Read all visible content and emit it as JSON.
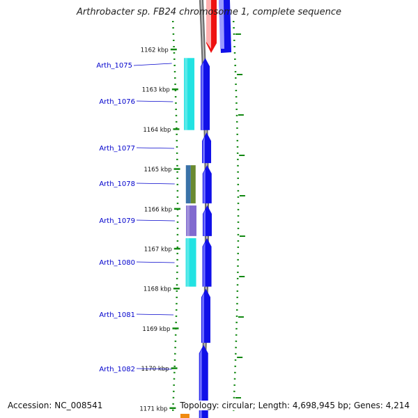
{
  "title": "Arthrobacter sp. FB24 chromosome 1, complete sequence",
  "footer": {
    "accession": "Accession: NC_008541",
    "summary": "Topology: circular; Length: 4,698,945 bp; Genes: 4,214"
  },
  "ticks": [
    {
      "label": "1162 kbp",
      "kbp": 1162
    },
    {
      "label": "1163 kbp",
      "kbp": 1163
    },
    {
      "label": "1164 kbp",
      "kbp": 1164
    },
    {
      "label": "1165 kbp",
      "kbp": 1165
    },
    {
      "label": "1166 kbp",
      "kbp": 1166
    },
    {
      "label": "1167 kbp",
      "kbp": 1167
    },
    {
      "label": "1168 kbp",
      "kbp": 1168
    },
    {
      "label": "1169 kbp",
      "kbp": 1169
    },
    {
      "label": "1170 kbp",
      "kbp": 1170
    },
    {
      "label": "1171 kbp",
      "kbp": 1171
    }
  ],
  "genes": [
    {
      "label": "Arth_1075",
      "start_kbp": 1162.18,
      "end_kbp": 1164.04,
      "cog_color": "#16e0e0"
    },
    {
      "label": "Arth_1076",
      "start_kbp": null,
      "end_kbp": null,
      "cog_color": null
    },
    {
      "label": "Arth_1077",
      "start_kbp": 1164.05,
      "end_kbp": 1164.87,
      "cog_color": null
    },
    {
      "label": "Arth_1078",
      "start_kbp": 1164.87,
      "end_kbp": 1165.88,
      "cog_color": "#3a72a8",
      "cog_color2": "#6a8a30"
    },
    {
      "label": "Arth_1079",
      "start_kbp": 1165.88,
      "end_kbp": 1166.7,
      "cog_color": "#7a62cc"
    },
    {
      "label": "Arth_1080",
      "start_kbp": 1166.7,
      "end_kbp": 1167.97,
      "cog_color": "#16e0e0"
    },
    {
      "label": "Arth_1081",
      "start_kbp": 1167.97,
      "end_kbp": 1169.38,
      "cog_color": null
    },
    {
      "label": "Arth_1082",
      "start_kbp": 1169.38,
      "end_kbp": 1171.4,
      "cog_color": null
    }
  ],
  "colors": {
    "backbone": "#8a8a8a",
    "forward": "#1010e8",
    "tick": "#118811",
    "label": "#0000cc",
    "neighbor_top": "#ee1111",
    "neighbor_bottom": "#f08a10"
  }
}
